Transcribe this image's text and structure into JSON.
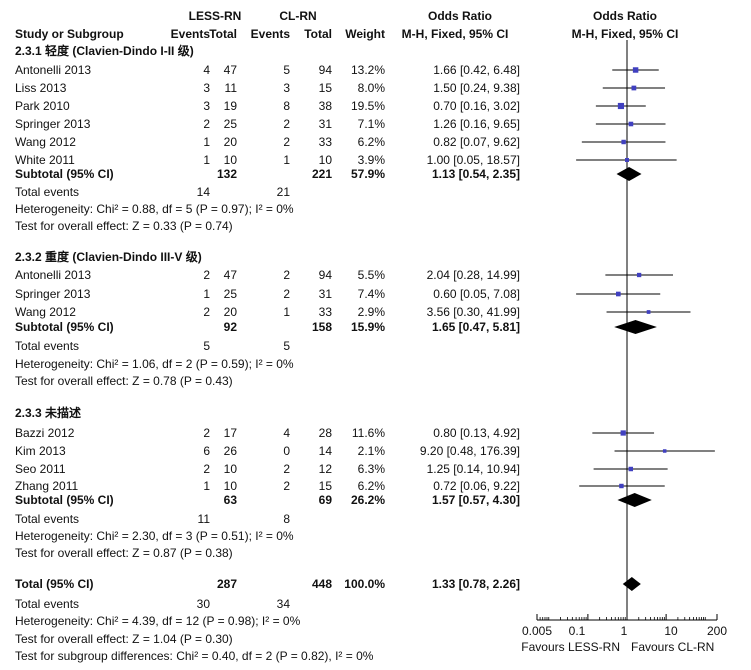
{
  "header": {
    "group1": "LESS-RN",
    "group2": "CL-RN",
    "or_table": "Odds Ratio",
    "or_plot": "Odds Ratio",
    "study": "Study or Subgroup",
    "events1": "Events",
    "total1": "Total",
    "events2": "Events",
    "total2": "Total",
    "weight": "Weight",
    "method_table": "M-H, Fixed, 95% CI",
    "method_plot": "M-H, Fixed, 95% CI"
  },
  "subgroups": [
    {
      "title": "2.3.1 轻度 (Clavien-Dindo I-II 级)",
      "studies": [
        {
          "name": "Antonelli 2013",
          "e1": "4",
          "t1": "47",
          "e2": "5",
          "t2": "94",
          "weight": "13.2%",
          "ci_text": "1.66 [0.42, 6.48]"
        },
        {
          "name": "Liss 2013",
          "e1": "3",
          "t1": "11",
          "e2": "3",
          "t2": "15",
          "weight": "8.0%",
          "ci_text": "1.50 [0.24, 9.38]"
        },
        {
          "name": "Park 2010",
          "e1": "3",
          "t1": "19",
          "e2": "8",
          "t2": "38",
          "weight": "19.5%",
          "ci_text": "0.70 [0.16, 3.02]"
        },
        {
          "name": "Springer 2013",
          "e1": "2",
          "t1": "25",
          "e2": "2",
          "t2": "31",
          "weight": "7.1%",
          "ci_text": "1.26 [0.16, 9.65]"
        },
        {
          "name": "Wang 2012",
          "e1": "1",
          "t1": "20",
          "e2": "2",
          "t2": "33",
          "weight": "6.2%",
          "ci_text": "0.82 [0.07, 9.62]"
        },
        {
          "name": "White 2011",
          "e1": "1",
          "t1": "10",
          "e2": "1",
          "t2": "10",
          "weight": "3.9%",
          "ci_text": "1.00 [0.05, 18.57]"
        }
      ],
      "subtotal": {
        "label": "Subtotal (95% CI)",
        "t1": "132",
        "t2": "221",
        "weight": "57.9%",
        "ci_text": "1.13 [0.54, 2.35]"
      },
      "events": {
        "label": "Total events",
        "e1": "14",
        "e2": "21"
      },
      "heterogeneity": "Heterogeneity: Chi² = 0.88, df = 5 (P = 0.97); I² = 0%",
      "test": "Test for overall effect: Z = 0.33 (P = 0.74)"
    },
    {
      "title": "2.3.2 重度 (Clavien-Dindo III-V 级)",
      "studies": [
        {
          "name": "Antonelli 2013",
          "e1": "2",
          "t1": "47",
          "e2": "2",
          "t2": "94",
          "weight": "5.5%",
          "ci_text": "2.04 [0.28, 14.99]"
        },
        {
          "name": "Springer 2013",
          "e1": "1",
          "t1": "25",
          "e2": "2",
          "t2": "31",
          "weight": "7.4%",
          "ci_text": "0.60 [0.05, 7.08]"
        },
        {
          "name": "Wang 2012",
          "e1": "2",
          "t1": "20",
          "e2": "1",
          "t2": "33",
          "weight": "2.9%",
          "ci_text": "3.56 [0.30, 41.99]"
        }
      ],
      "subtotal": {
        "label": "Subtotal (95% CI)",
        "t1": "92",
        "t2": "158",
        "weight": "15.9%",
        "ci_text": "1.65 [0.47, 5.81]"
      },
      "events": {
        "label": "Total events",
        "e1": "5",
        "e2": "5"
      },
      "heterogeneity": "Heterogeneity: Chi² = 1.06, df = 2 (P = 0.59); I² = 0%",
      "test": "Test for overall effect: Z = 0.78 (P = 0.43)"
    },
    {
      "title": "2.3.3 未描述",
      "studies": [
        {
          "name": "Bazzi 2012",
          "e1": "2",
          "t1": "17",
          "e2": "4",
          "t2": "28",
          "weight": "11.6%",
          "ci_text": "0.80 [0.13, 4.92]"
        },
        {
          "name": "Kim 2013",
          "e1": "6",
          "t1": "26",
          "e2": "0",
          "t2": "14",
          "weight": "2.1%",
          "ci_text": "9.20 [0.48, 176.39]"
        },
        {
          "name": "Seo 2011",
          "e1": "2",
          "t1": "10",
          "e2": "2",
          "t2": "12",
          "weight": "6.3%",
          "ci_text": "1.25 [0.14, 10.94]"
        },
        {
          "name": "Zhang 2011",
          "e1": "1",
          "t1": "10",
          "e2": "2",
          "t2": "15",
          "weight": "6.2%",
          "ci_text": "0.72 [0.06, 9.22]"
        }
      ],
      "subtotal": {
        "label": "Subtotal (95% CI)",
        "t1": "63",
        "t2": "69",
        "weight": "26.2%",
        "ci_text": "1.57 [0.57, 4.30]"
      },
      "events": {
        "label": "Total events",
        "e1": "11",
        "e2": "8"
      },
      "heterogeneity": "Heterogeneity: Chi² = 2.30, df = 3 (P = 0.51); I² = 0%",
      "test": "Test for overall effect: Z = 0.87 (P = 0.38)"
    }
  ],
  "total": {
    "label": "Total (95% CI)",
    "t1": "287",
    "t2": "448",
    "weight": "100.0%",
    "ci_text": "1.33 [0.78, 2.26]",
    "events": {
      "label": "Total events",
      "e1": "30",
      "e2": "34"
    },
    "heterogeneity": "Heterogeneity: Chi² = 4.39, df = 12 (P = 0.98); I² = 0%",
    "test": "Test for overall effect: Z = 1.04 (P = 0.30)",
    "subgroup_test": "Test for subgroup differences: Chi² = 0.40, df = 2 (P = 0.82), I² = 0%"
  },
  "axis": {
    "ticks": [
      "0.005",
      "0.1",
      "1",
      "10",
      "200"
    ],
    "left_label": "Favours LESS-RN",
    "right_label": "Favours CL-RN"
  },
  "chart_data": {
    "type": "scatter",
    "scale": "log",
    "xlim": [
      0.005,
      200
    ],
    "reference_line": 1,
    "studies": [
      {
        "name": "Antonelli 2013",
        "subgroup": "2.3.1",
        "or": 1.66,
        "lo": 0.42,
        "hi": 6.48,
        "weight": 13.2
      },
      {
        "name": "Liss 2013",
        "subgroup": "2.3.1",
        "or": 1.5,
        "lo": 0.24,
        "hi": 9.38,
        "weight": 8.0
      },
      {
        "name": "Park 2010",
        "subgroup": "2.3.1",
        "or": 0.7,
        "lo": 0.16,
        "hi": 3.02,
        "weight": 19.5
      },
      {
        "name": "Springer 2013",
        "subgroup": "2.3.1",
        "or": 1.26,
        "lo": 0.16,
        "hi": 9.65,
        "weight": 7.1
      },
      {
        "name": "Wang 2012",
        "subgroup": "2.3.1",
        "or": 0.82,
        "lo": 0.07,
        "hi": 9.62,
        "weight": 6.2
      },
      {
        "name": "White 2011",
        "subgroup": "2.3.1",
        "or": 1.0,
        "lo": 0.05,
        "hi": 18.57,
        "weight": 3.9
      },
      {
        "name": "Antonelli 2013",
        "subgroup": "2.3.2",
        "or": 2.04,
        "lo": 0.28,
        "hi": 14.99,
        "weight": 5.5
      },
      {
        "name": "Springer 2013",
        "subgroup": "2.3.2",
        "or": 0.6,
        "lo": 0.05,
        "hi": 7.08,
        "weight": 7.4
      },
      {
        "name": "Wang 2012",
        "subgroup": "2.3.2",
        "or": 3.56,
        "lo": 0.3,
        "hi": 41.99,
        "weight": 2.9
      },
      {
        "name": "Bazzi 2012",
        "subgroup": "2.3.3",
        "or": 0.8,
        "lo": 0.13,
        "hi": 4.92,
        "weight": 11.6
      },
      {
        "name": "Kim 2013",
        "subgroup": "2.3.3",
        "or": 9.2,
        "lo": 0.48,
        "hi": 176.39,
        "weight": 2.1
      },
      {
        "name": "Seo 2011",
        "subgroup": "2.3.3",
        "or": 1.25,
        "lo": 0.14,
        "hi": 10.94,
        "weight": 6.3
      },
      {
        "name": "Zhang 2011",
        "subgroup": "2.3.3",
        "or": 0.72,
        "lo": 0.06,
        "hi": 9.22,
        "weight": 6.2
      }
    ],
    "pooled": [
      {
        "name": "Subtotal 2.3.1",
        "or": 1.13,
        "lo": 0.54,
        "hi": 2.35
      },
      {
        "name": "Subtotal 2.3.2",
        "or": 1.65,
        "lo": 0.47,
        "hi": 5.81
      },
      {
        "name": "Subtotal 2.3.3",
        "or": 1.57,
        "lo": 0.57,
        "hi": 4.3
      },
      {
        "name": "Total",
        "or": 1.33,
        "lo": 0.78,
        "hi": 2.26
      }
    ],
    "colors": {
      "point": "#4040c0",
      "line": "#000000",
      "diamond": "#000000"
    }
  }
}
